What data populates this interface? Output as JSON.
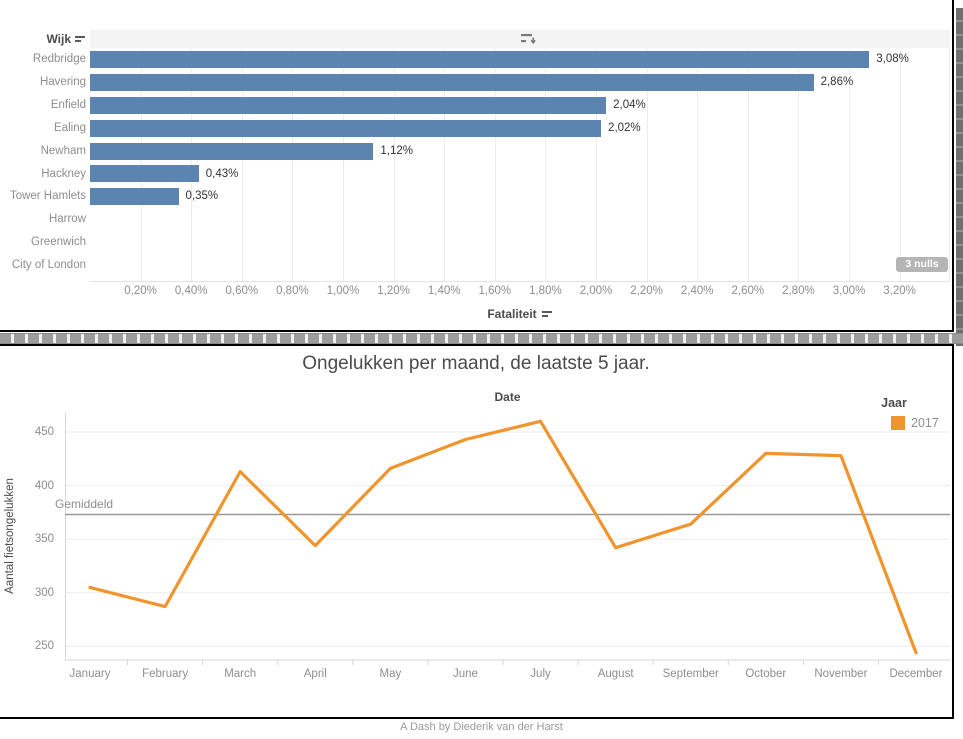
{
  "caption": "A Dash by Diederik van der Harst",
  "top_chart": {
    "row_header": "Wijk",
    "axis_title": "Fataliteit",
    "nulls_badge": "3 nulls",
    "icons": [
      "sort-icon",
      "sort-descending-icon",
      "sort-icon"
    ]
  },
  "bottom_chart": {
    "title": "Ongelukken per maand, de laatste 5 jaar.",
    "top_axis_title": "Date",
    "legend_title": "Jaar",
    "legend_items": [
      {
        "label": "2017",
        "color": "#f0942d"
      }
    ],
    "y_axis_title": "Aantal fietsongelukken",
    "ref_line_label": "Gemiddeld"
  },
  "chart_data": [
    {
      "type": "bar",
      "orientation": "horizontal",
      "categories": [
        "Redbridge",
        "Havering",
        "Enfield",
        "Ealing",
        "Newham",
        "Hackney",
        "Tower Hamlets",
        "Harrow",
        "Greenwich",
        "City of London"
      ],
      "values": [
        3.08,
        2.86,
        2.04,
        2.02,
        1.12,
        0.43,
        0.35,
        null,
        null,
        null
      ],
      "value_labels": [
        "3,08%",
        "2,86%",
        "2,04%",
        "2,02%",
        "1,12%",
        "0,43%",
        "0,35%",
        "",
        "",
        ""
      ],
      "null_count": 3,
      "xlabel": "Fataliteit",
      "category_header": "Wijk",
      "x_ticks": {
        "values": [
          0.2,
          0.4,
          0.6,
          0.8,
          1.0,
          1.2,
          1.4,
          1.6,
          1.8,
          2.0,
          2.2,
          2.4,
          2.6,
          2.8,
          3.0,
          3.2
        ],
        "labels": [
          "0,20%",
          "0,40%",
          "0,60%",
          "0,80%",
          "1,00%",
          "1,20%",
          "1,40%",
          "1,60%",
          "1,80%",
          "2,00%",
          "2,20%",
          "2,40%",
          "2,60%",
          "2,80%",
          "3,00%",
          "3,20%"
        ]
      },
      "xlim": [
        0,
        3.4
      ],
      "bar_color": "#5b84b1",
      "grid": true
    },
    {
      "type": "line",
      "title": "Ongelukken per maand, de laatste 5 jaar.",
      "xlabel": "Date",
      "ylabel": "Aantal fietsongelukken",
      "categories": [
        "January",
        "February",
        "March",
        "April",
        "May",
        "June",
        "July",
        "August",
        "September",
        "October",
        "November",
        "December"
      ],
      "series": [
        {
          "name": "2017",
          "color": "#f0942d",
          "values": [
            305,
            287,
            413,
            344,
            416,
            443,
            460,
            342,
            364,
            430,
            428,
            244
          ]
        }
      ],
      "y_ticks": [
        250,
        300,
        350,
        400,
        450
      ],
      "ylim": [
        237,
        475
      ],
      "ref_line": {
        "label": "Gemiddeld",
        "value": 373
      },
      "legend_title": "Jaar",
      "legend_position": "top-right",
      "grid": true
    }
  ],
  "colors": {
    "bar": "#5b84b1",
    "line": "#f0942d",
    "grid": "#ececec",
    "axis_line": "#d7d7d7",
    "reference_line": "#999999",
    "badge_bg": "#b5b5b5",
    "header_band": "#f4f4f4",
    "border": "#000000",
    "text_dark": "#4c4c4c",
    "text_gray": "#8e8e8e"
  }
}
